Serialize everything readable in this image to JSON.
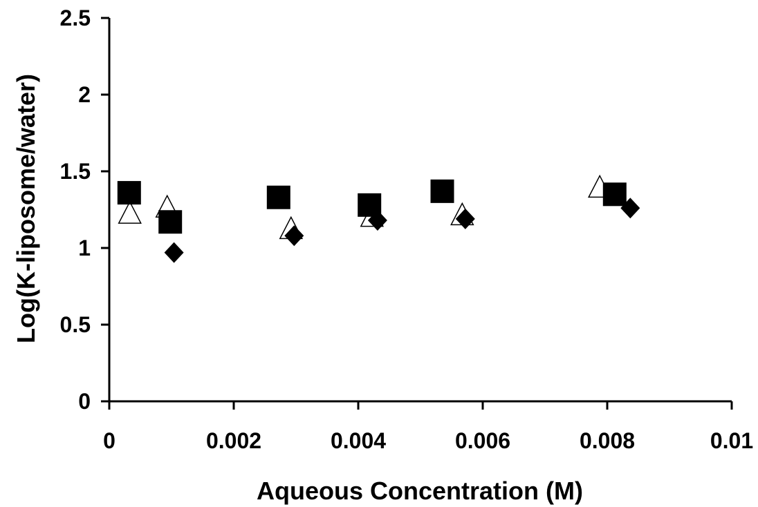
{
  "chart_data": {
    "type": "scatter",
    "title": "",
    "xlabel": "Aqueous Concentration (M)",
    "ylabel": "Log(K-liposome/water)",
    "xlim": [
      0,
      0.01
    ],
    "ylim": [
      0,
      2.5
    ],
    "x_tick_labels": [
      "0",
      "0.002",
      "0.004",
      "0.006",
      "0.008",
      "0.01"
    ],
    "y_tick_labels": [
      "0",
      "0.5",
      "1",
      "1.5",
      "2",
      "2.5"
    ],
    "grid": false,
    "legend": "none",
    "series": [
      {
        "marker": "square",
        "color": "#000000",
        "points": [
          {
            "x": 0.00032,
            "y": 1.36
          },
          {
            "x": 0.00098,
            "y": 1.17
          },
          {
            "x": 0.00272,
            "y": 1.33
          },
          {
            "x": 0.00418,
            "y": 1.28
          },
          {
            "x": 0.00535,
            "y": 1.37
          },
          {
            "x": 0.00812,
            "y": 1.35
          }
        ]
      },
      {
        "marker": "triangle-open",
        "color": "#000000",
        "points": [
          {
            "x": 0.00033,
            "y": 1.22
          },
          {
            "x": 0.00093,
            "y": 1.26
          },
          {
            "x": 0.00292,
            "y": 1.12
          },
          {
            "x": 0.00422,
            "y": 1.2
          },
          {
            "x": 0.00567,
            "y": 1.21
          },
          {
            "x": 0.00788,
            "y": 1.39
          }
        ]
      },
      {
        "marker": "diamond",
        "color": "#000000",
        "points": [
          {
            "x": 0.00104,
            "y": 0.97
          },
          {
            "x": 0.00297,
            "y": 1.08
          },
          {
            "x": 0.00431,
            "y": 1.18
          },
          {
            "x": 0.00572,
            "y": 1.19
          },
          {
            "x": 0.00837,
            "y": 1.26
          }
        ]
      }
    ]
  }
}
